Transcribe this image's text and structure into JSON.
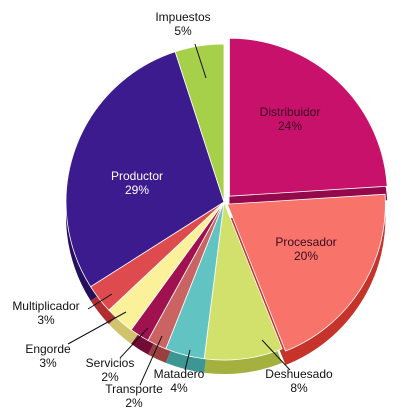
{
  "chart_data": {
    "type": "pie",
    "style": "3d",
    "start_at": "top",
    "direction": "clockwise",
    "slices": [
      {
        "label": "Distribuidor",
        "value": 24,
        "display": "24%",
        "color": "#C8116A",
        "side": "#93094C"
      },
      {
        "label": "Procesador",
        "value": 20,
        "display": "20%",
        "color": "#F8736A",
        "side": "#C5332A"
      },
      {
        "label": "Deshuesado",
        "value": 8,
        "display": "8%",
        "color": "#D2E06C",
        "side": "#A4B13F"
      },
      {
        "label": "Matadero",
        "value": 4,
        "display": "4%",
        "color": "#62C4C2",
        "side": "#3C9694"
      },
      {
        "label": "Transporte",
        "value": 2,
        "display": "2%",
        "color": "#CC6363",
        "side": "#9A3F3F"
      },
      {
        "label": "Servicios",
        "value": 2,
        "display": "2%",
        "color": "#A0114F",
        "side": "#730B37"
      },
      {
        "label": "Engorde",
        "value": 3,
        "display": "3%",
        "color": "#FCF19B",
        "side": "#CFC46B"
      },
      {
        "label": "Multiplicador",
        "value": 3,
        "display": "3%",
        "color": "#DE4B4F",
        "side": "#AE2E32"
      },
      {
        "label": "Productor",
        "value": 29,
        "display": "29%",
        "color": "#3C1B8F",
        "side": "#26105E"
      },
      {
        "label": "Impuestos",
        "value": 5,
        "display": "5%",
        "color": "#A7D04A",
        "side": "#7A9F2C"
      }
    ]
  }
}
